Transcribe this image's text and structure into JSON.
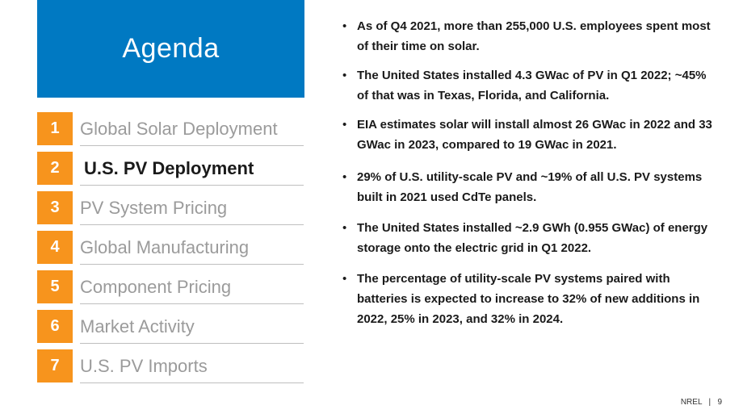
{
  "title": "Agenda",
  "agenda": {
    "items": [
      {
        "num": "1",
        "label": "Global Solar Deployment"
      },
      {
        "num": "2",
        "label": "U.S. PV Deployment"
      },
      {
        "num": "3",
        "label": "PV System Pricing"
      },
      {
        "num": "4",
        "label": "Global Manufacturing"
      },
      {
        "num": "5",
        "label": "Component Pricing"
      },
      {
        "num": "6",
        "label": "Market Activity"
      },
      {
        "num": "7",
        "label": "U.S. PV Imports"
      }
    ]
  },
  "bullets": [
    "As of Q4 2021, more than 255,000 U.S. employees spent most of their time on solar.",
    "The United States installed 4.3 GWac of PV in Q1 2022; ~45% of that was in Texas, Florida, and California.",
    "EIA estimates solar will install almost 26 GWac in 2022 and 33 GWac in 2023, compared to 19 GWac in 2021.",
    "29% of U.S. utility-scale PV and ~19% of all U.S. PV systems built in 2021 used CdTe panels.",
    "The United States installed ~2.9 GWh (0.955 GWac) of energy storage onto the electric grid in Q1 2022.",
    "The percentage of utility-scale PV systems paired with batteries is expected to increase to 32% of new additions in 2022, 25% in 2023, and 32% in 2024."
  ],
  "footer": {
    "org": "NREL",
    "separator": "|",
    "page": "9"
  },
  "colors": {
    "title_bg": "#0079c2",
    "number_bg": "#f7941d",
    "inactive_text": "#9b9b9b"
  }
}
